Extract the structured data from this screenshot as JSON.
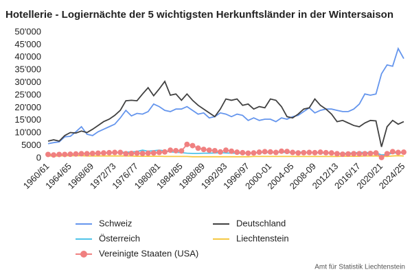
{
  "chart_data": {
    "type": "line",
    "title": "Hotellerie - Logiernächte der 5 wichtigsten Herkunftsländer in der Wintersaison",
    "source": "Amt für Statistik Liechtenstein",
    "categories": [
      "1960/61",
      null,
      null,
      null,
      "1964/65",
      null,
      null,
      null,
      "1968/69",
      null,
      null,
      null,
      "1972/73",
      null,
      null,
      null,
      "1976/77",
      null,
      null,
      null,
      "1980/81",
      null,
      null,
      null,
      "1984/85",
      null,
      null,
      null,
      "1988/89",
      null,
      null,
      null,
      "1992/93",
      null,
      null,
      null,
      "1996/97",
      null,
      null,
      null,
      "2000-01",
      null,
      null,
      null,
      "2004-05",
      null,
      null,
      null,
      "2008-09",
      null,
      null,
      null,
      "2012/13",
      null,
      null,
      null,
      "2016/17",
      null,
      null,
      null,
      "2020/21",
      null,
      null,
      null,
      "2024/25"
    ],
    "ylim": [
      0,
      50000
    ],
    "yticks": [
      0,
      {
        "value": 5000,
        "label": "5000"
      },
      {
        "value": 10000,
        "label": "10'000"
      },
      {
        "value": 15000,
        "label": "15'000"
      },
      {
        "value": 20000,
        "label": "20'000"
      },
      {
        "value": 25000,
        "label": "25'000"
      },
      {
        "value": 30000,
        "label": "30'000"
      },
      {
        "value": 35000,
        "label": "35'000"
      },
      {
        "value": 40000,
        "label": "40'000"
      },
      {
        "value": 45000,
        "label": "45'000"
      },
      {
        "value": 50000,
        "label": "50'000"
      }
    ],
    "grid": false,
    "series": [
      {
        "name": "Schweiz",
        "color": "#6495ed",
        "values": [
          5800,
          6200,
          6500,
          8500,
          8700,
          10500,
          12500,
          9500,
          9000,
          10500,
          11500,
          12500,
          13500,
          16000,
          19000,
          16800,
          17800,
          17500,
          18500,
          21500,
          20500,
          19000,
          18500,
          19500,
          19500,
          20500,
          19000,
          17500,
          18000,
          16000,
          16500,
          18000,
          17500,
          16500,
          17500,
          17000,
          15000,
          16000,
          15000,
          15500,
          15500,
          14500,
          16000,
          15500,
          16500,
          17000,
          18500,
          20000,
          18000,
          19000,
          19500,
          19500,
          19000,
          18500,
          18500,
          19500,
          21500,
          25500,
          25000,
          25500,
          33500,
          37000,
          36500,
          43500,
          39500
        ]
      },
      {
        "name": "Deutschland",
        "color": "#404040",
        "values": [
          6800,
          7300,
          6800,
          9000,
          10200,
          10000,
          10800,
          10200,
          11500,
          13000,
          14500,
          15500,
          17000,
          19000,
          22800,
          23000,
          22800,
          25500,
          28000,
          24800,
          27500,
          30500,
          25000,
          25500,
          23000,
          25500,
          23000,
          21000,
          19500,
          18000,
          16500,
          19500,
          23500,
          23000,
          23500,
          21000,
          21500,
          19500,
          20500,
          20000,
          23500,
          23000,
          20500,
          16500,
          16000,
          17500,
          19500,
          20000,
          23500,
          21000,
          19500,
          17500,
          14500,
          15000,
          14000,
          13000,
          12500,
          14000,
          15000,
          14800,
          4500,
          12500,
          15000,
          13500,
          14500
        ]
      },
      {
        "name": "Österreich",
        "color": "#4fc3e8",
        "values": [
          1200,
          1300,
          1400,
          1500,
          1500,
          1600,
          1800,
          1700,
          1700,
          1900,
          2000,
          2100,
          2200,
          2300,
          2400,
          2500,
          2700,
          3200,
          2800,
          3000,
          3200,
          2900,
          2500,
          2400,
          2200,
          2000,
          1900,
          1900,
          2000,
          2000,
          2100,
          2200,
          2100,
          2000,
          2000,
          1900,
          2000,
          2100,
          2200,
          2300,
          2200,
          2300,
          2400,
          2200,
          2300,
          2400,
          2400,
          2300,
          2200,
          2100,
          2000,
          2000,
          1900,
          1900,
          2000,
          2100,
          2300,
          2300,
          2200,
          2200,
          1300,
          1500,
          2000,
          2200,
          2100
        ]
      },
      {
        "name": "Liechtenstein",
        "color": "#f5c842",
        "values": [
          900,
          900,
          900,
          1000,
          1000,
          1000,
          1000,
          900,
          900,
          900,
          900,
          900,
          900,
          900,
          900,
          900,
          800,
          800,
          800,
          800,
          800,
          700,
          700,
          700,
          700,
          700,
          600,
          600,
          600,
          600,
          600,
          600,
          600,
          600,
          600,
          600,
          600,
          700,
          700,
          700,
          700,
          700,
          700,
          700,
          700,
          700,
          700,
          700,
          700,
          700,
          700,
          700,
          700,
          800,
          800,
          800,
          800,
          900,
          900,
          900,
          800,
          700,
          900,
          1000,
          900
        ]
      },
      {
        "name": "Vereinigte Staaten (USA)",
        "color": "#f08080",
        "marker": "circle",
        "values": [
          1500,
          1300,
          1500,
          1500,
          1600,
          1700,
          1800,
          1800,
          1900,
          2000,
          2100,
          2200,
          2300,
          2300,
          1800,
          1900,
          2000,
          1900,
          2000,
          2100,
          2300,
          2500,
          3200,
          3000,
          2900,
          5500,
          5000,
          4000,
          3500,
          3200,
          3000,
          2500,
          3200,
          2800,
          2400,
          2200,
          2000,
          2100,
          2400,
          2600,
          2500,
          2300,
          2800,
          2700,
          2300,
          2100,
          2200,
          2300,
          2200,
          2400,
          2200,
          2100,
          1800,
          1600,
          1700,
          1800,
          1800,
          1800,
          1900,
          2100,
          300,
          1800,
          2600,
          2300,
          2400
        ]
      }
    ]
  }
}
